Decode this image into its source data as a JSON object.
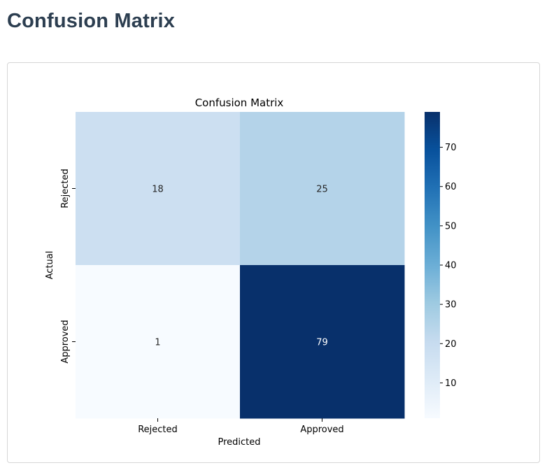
{
  "page": {
    "title": "Confusion Matrix"
  },
  "chart_data": {
    "type": "heatmap",
    "title": "Confusion Matrix",
    "xlabel": "Predicted",
    "ylabel": "Actual",
    "x_categories": [
      "Rejected",
      "Approved"
    ],
    "y_categories": [
      "Rejected",
      "Approved"
    ],
    "values": [
      [
        18,
        25
      ],
      [
        1,
        79
      ]
    ],
    "colormap": "Blues",
    "colorbar": {
      "min": 1,
      "max": 79,
      "ticks": [
        10,
        20,
        30,
        40,
        50,
        60,
        70
      ]
    },
    "colors": {
      "low": "#f7fbff",
      "high": "#08306b",
      "text_dark": "#262626",
      "text_light": "#ffffff"
    }
  }
}
